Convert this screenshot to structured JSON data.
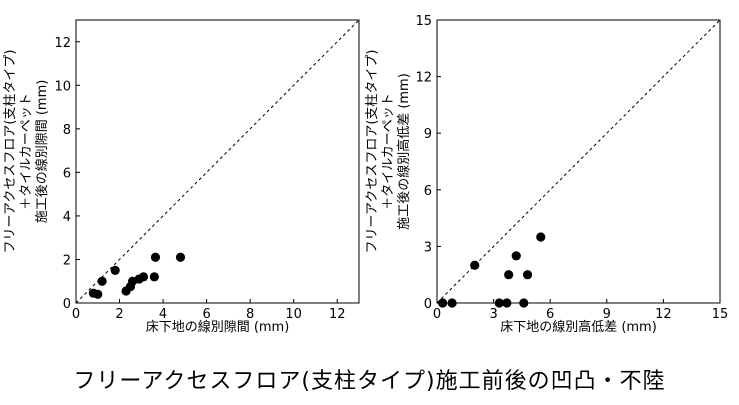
{
  "figure_title": "フリーアクセスフロア(支柱タイプ)施工前後の凹凸・不陸",
  "chart_data": [
    {
      "type": "scatter",
      "xlabel": "床下地の線別隙間 (mm)",
      "ylabel_lines": [
        "フリーアクセスフロア(支柱タイプ)",
        "＋タイルカーペット",
        "施工後の線別隙間 (mm)"
      ],
      "xlim": [
        0,
        13
      ],
      "ylim": [
        0,
        13
      ],
      "xticks": [
        0,
        2,
        4,
        6,
        8,
        10,
        12
      ],
      "yticks": [
        0,
        2,
        4,
        6,
        8,
        10,
        12
      ],
      "diagonal": "dashed y=x",
      "points": [
        {
          "x": 0.8,
          "y": 0.45
        },
        {
          "x": 1.0,
          "y": 0.4
        },
        {
          "x": 1.2,
          "y": 1.0
        },
        {
          "x": 1.8,
          "y": 1.5
        },
        {
          "x": 2.3,
          "y": 0.55
        },
        {
          "x": 2.5,
          "y": 0.75
        },
        {
          "x": 2.6,
          "y": 1.0
        },
        {
          "x": 2.9,
          "y": 1.1
        },
        {
          "x": 3.1,
          "y": 1.2
        },
        {
          "x": 3.6,
          "y": 1.2
        },
        {
          "x": 3.65,
          "y": 2.1
        },
        {
          "x": 4.8,
          "y": 2.1
        }
      ]
    },
    {
      "type": "scatter",
      "xlabel": "床下地の線別高低差 (mm)",
      "ylabel_lines": [
        "フリーアクセスフロア(支柱タイプ)",
        "＋タイルカーペット",
        "施工後の線別高低差 (mm)"
      ],
      "xlim": [
        0,
        15
      ],
      "ylim": [
        0,
        15
      ],
      "xticks": [
        0,
        3,
        6,
        9,
        12,
        15
      ],
      "yticks": [
        0,
        3,
        6,
        9,
        12,
        15
      ],
      "diagonal": "dashed y=x",
      "points": [
        {
          "x": 0.3,
          "y": 0.0
        },
        {
          "x": 0.8,
          "y": 0.0
        },
        {
          "x": 2.0,
          "y": 2.0
        },
        {
          "x": 3.3,
          "y": 0.0
        },
        {
          "x": 3.7,
          "y": 0.0
        },
        {
          "x": 3.8,
          "y": 1.5
        },
        {
          "x": 4.2,
          "y": 2.5
        },
        {
          "x": 4.6,
          "y": 0.0
        },
        {
          "x": 4.8,
          "y": 1.5
        },
        {
          "x": 5.5,
          "y": 3.5
        }
      ]
    }
  ]
}
